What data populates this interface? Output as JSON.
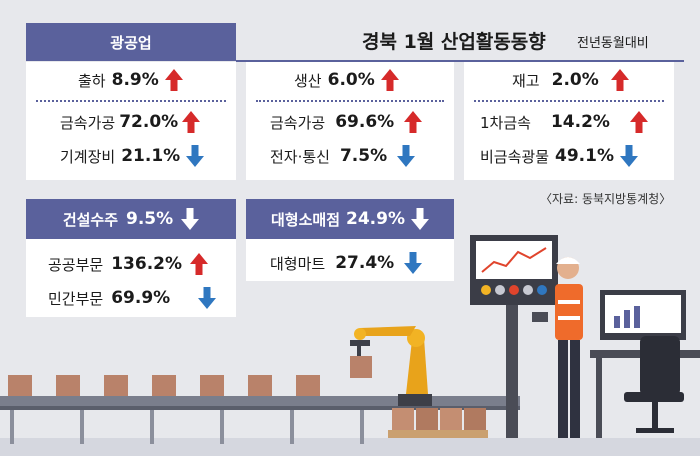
{
  "header": {
    "title": "경북 1월 산업활동동향",
    "subtitle": "전년동월대비",
    "source": "〈자료: 동북지방통계청〉"
  },
  "colors": {
    "up": "#d62a2a",
    "down": "#2f77c0",
    "accent": "#5a619c"
  },
  "mining": {
    "tab": "광공업",
    "shipment": {
      "label": "출하",
      "value": "8.9%",
      "trend": "up"
    },
    "production": {
      "label": "생산",
      "value": "6.0%",
      "trend": "up"
    },
    "inventory": {
      "label": "재고",
      "value": "2.0%",
      "trend": "up"
    },
    "shipment_items": [
      {
        "label": "금속가공",
        "value": "72.0%",
        "trend": "up"
      },
      {
        "label": "기계장비",
        "value": "21.1%",
        "trend": "down"
      }
    ],
    "production_items": [
      {
        "label": "금속가공",
        "value": "69.6%",
        "trend": "up"
      },
      {
        "label": "전자·통신",
        "value": "7.5%",
        "trend": "down"
      }
    ],
    "inventory_items": [
      {
        "label": "1차금속",
        "value": "14.2%",
        "trend": "up"
      },
      {
        "label": "비금속광물",
        "value": "49.1%",
        "trend": "down"
      }
    ]
  },
  "construction": {
    "label": "건설수주",
    "value": "9.5%",
    "trend": "down",
    "items": [
      {
        "label": "공공부문",
        "value": "136.2%",
        "trend": "up"
      },
      {
        "label": "민간부문",
        "value": "69.9%",
        "trend": "down"
      }
    ]
  },
  "retail": {
    "label": "대형소매점",
    "value": "24.9%",
    "trend": "down",
    "items": [
      {
        "label": "대형마트",
        "value": "27.4%",
        "trend": "down"
      }
    ]
  }
}
